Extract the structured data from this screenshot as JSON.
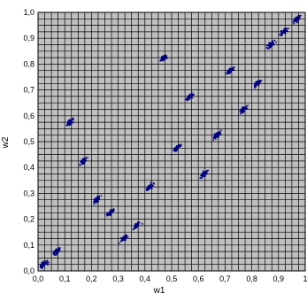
{
  "chart_data": {
    "type": "scatter",
    "xlabel": "w1",
    "ylabel": "w2",
    "xlim": [
      0,
      1
    ],
    "ylim": [
      0,
      1
    ],
    "x_tick_labels": [
      "0,0",
      "0,1",
      "0,2",
      "0,3",
      "0,4",
      "0,5",
      "0,6",
      "0,7",
      "0,8",
      "0,9",
      "1"
    ],
    "y_tick_labels": [
      "0,0",
      "0,1",
      "0,2",
      "0,3",
      "0,4",
      "0,5",
      "0,6",
      "0,7",
      "0,8",
      "0,9",
      "1,0"
    ],
    "grid_step": 0.025,
    "grid": true,
    "legend": "none",
    "colors": {
      "plot_background": "#c0c0c0",
      "grid_line": "#000000",
      "marker": "#000080"
    },
    "clusters": [
      {
        "x": 0.02,
        "y": 0.025
      },
      {
        "x": 0.07,
        "y": 0.075
      },
      {
        "x": 0.12,
        "y": 0.575
      },
      {
        "x": 0.17,
        "y": 0.425
      },
      {
        "x": 0.22,
        "y": 0.275
      },
      {
        "x": 0.27,
        "y": 0.225
      },
      {
        "x": 0.32,
        "y": 0.125
      },
      {
        "x": 0.37,
        "y": 0.175
      },
      {
        "x": 0.42,
        "y": 0.325
      },
      {
        "x": 0.47,
        "y": 0.825
      },
      {
        "x": 0.52,
        "y": 0.475
      },
      {
        "x": 0.57,
        "y": 0.675
      },
      {
        "x": 0.62,
        "y": 0.375
      },
      {
        "x": 0.67,
        "y": 0.525
      },
      {
        "x": 0.72,
        "y": 0.775
      },
      {
        "x": 0.77,
        "y": 0.625
      },
      {
        "x": 0.82,
        "y": 0.725
      },
      {
        "x": 0.87,
        "y": 0.875
      },
      {
        "x": 0.92,
        "y": 0.925
      },
      {
        "x": 0.97,
        "y": 0.975
      }
    ]
  }
}
